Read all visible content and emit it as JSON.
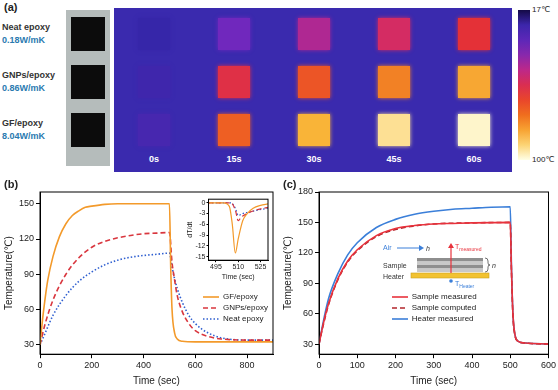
{
  "chart_data": [
    {
      "panel": "(a)",
      "type": "heatmap",
      "x": [
        "0s",
        "15s",
        "30s",
        "45s",
        "60s"
      ],
      "rows": [
        {
          "name": "Neat epoxy",
          "label": "0.18W/mK",
          "values": [
            24,
            38,
            48,
            56,
            62
          ]
        },
        {
          "name": "GNPs/epoxy",
          "label": "0.86W/mK",
          "values": [
            26,
            60,
            70,
            78,
            84
          ]
        },
        {
          "name": "GF/epoxy",
          "label": "8.04W/mK",
          "values": [
            28,
            72,
            86,
            94,
            98
          ]
        }
      ],
      "colorbar": {
        "range": [
          17,
          100
        ],
        "ticks": [
          {
            "value": 17,
            "label": "17℃"
          },
          {
            "value": 100,
            "label": "100℃"
          }
        ]
      }
    },
    {
      "panel": "(b)",
      "type": "line",
      "x_label": "Time (sec)",
      "y_label": "Temperature(℃)",
      "xlim": [
        0,
        900
      ],
      "xticks": [
        0,
        200,
        400,
        600,
        800
      ],
      "ylim": [
        22,
        160
      ],
      "yticks": [
        30,
        60,
        90,
        120,
        150
      ],
      "grid": false,
      "legend": "lower right",
      "series": [
        {
          "name": "GF/epoxy",
          "color": "#f39a2b",
          "line_style": "solid",
          "x": [
            0,
            10,
            20,
            30,
            50,
            75,
            100,
            125,
            150,
            175,
            200,
            250,
            300,
            400,
            495,
            500,
            505,
            510,
            520,
            530,
            550,
            600,
            700,
            800,
            900
          ],
          "values": [
            30,
            52,
            70,
            85,
            105,
            122,
            133,
            140,
            144,
            147,
            148,
            149.5,
            150,
            150,
            150,
            150,
            95,
            60,
            40,
            35,
            33,
            32.5,
            32.5,
            32.5,
            32.5
          ]
        },
        {
          "name": "GNPs/epoxy",
          "color": "#d9363e",
          "line_style": "dashed",
          "x": [
            0,
            20,
            50,
            100,
            150,
            200,
            250,
            300,
            350,
            400,
            450,
            500,
            510,
            520,
            530,
            550,
            575,
            600,
            650,
            700,
            800,
            900
          ],
          "values": [
            30,
            48,
            68,
            90,
            104,
            113,
            118,
            121,
            123,
            124.5,
            125,
            125.5,
            100,
            85,
            72,
            58,
            48,
            42,
            37,
            35,
            34,
            34
          ]
        },
        {
          "name": "Neat epoxy",
          "color": "#2f5fd0",
          "line_style": "dotted",
          "x": [
            0,
            20,
            50,
            100,
            150,
            200,
            250,
            300,
            350,
            400,
            450,
            500,
            510,
            520,
            530,
            550,
            575,
            600,
            650,
            700,
            800,
            900
          ],
          "values": [
            30,
            40,
            55,
            72,
            84,
            92,
            98,
            102,
            104.5,
            106,
            107,
            108,
            96,
            86,
            78,
            66,
            55,
            48,
            40,
            36,
            34,
            34
          ]
        }
      ],
      "inset": {
        "type": "line",
        "x_label": "Time (sec)",
        "y_label": "dT/dt",
        "xlim": [
          490,
          530
        ],
        "xticks": [
          495,
          510,
          525
        ],
        "ylim": [
          -16,
          1
        ],
        "yticks": [
          -15,
          -12,
          -9,
          -6,
          -3,
          0
        ],
        "grid": false,
        "series": [
          {
            "color": "#f39a2b",
            "line_style": "solid",
            "x": [
              490,
              500,
              504,
              506,
              508,
              510,
              513,
              516,
              520,
              525,
              530
            ],
            "values": [
              0,
              0,
              -1,
              -6,
              -14,
              -10,
              -5,
              -3,
              -1.5,
              -0.7,
              -0.3
            ]
          },
          {
            "color": "#d9363e",
            "line_style": "dashed",
            "x": [
              490,
              505,
              508,
              510,
              512,
              516,
              520,
              525,
              530
            ],
            "values": [
              0,
              0,
              -2,
              -5,
              -4,
              -3,
              -2.3,
              -1.7,
              -1.3
            ]
          },
          {
            "color": "#2f5fd0",
            "line_style": "dotted",
            "x": [
              490,
              505,
              508,
              510,
              513,
              520,
              530
            ],
            "values": [
              0,
              0,
              -1.5,
              -3.5,
              -3,
              -2.3,
              -1.5
            ]
          }
        ]
      }
    },
    {
      "panel": "(c)",
      "type": "line",
      "x_label": "Time (sec)",
      "y_label": "Temperature(℃)",
      "xlim": [
        0,
        600
      ],
      "xticks": [
        0,
        100,
        200,
        300,
        400,
        500,
        600
      ],
      "ylim": [
        20,
        180
      ],
      "yticks": [
        30,
        60,
        90,
        120,
        150,
        180
      ],
      "grid": false,
      "legend": "lower center",
      "series": [
        {
          "name": "Sample measured",
          "color": "#e8323c",
          "line_style": "solid",
          "x": [
            0,
            10,
            25,
            50,
            75,
            100,
            150,
            200,
            250,
            300,
            350,
            400,
            500,
            503,
            507,
            512,
            520,
            540,
            600
          ],
          "values": [
            30,
            48,
            70,
            95,
            112,
            123,
            137,
            144,
            147,
            148.5,
            149,
            149.5,
            150,
            105,
            60,
            40,
            33,
            31,
            30
          ]
        },
        {
          "name": "Sample computed",
          "color": "#b3262d",
          "line_style": "dashed",
          "x": [
            0,
            10,
            25,
            50,
            75,
            100,
            150,
            200,
            250,
            300,
            400,
            500,
            503,
            507,
            512,
            520,
            540,
            600
          ],
          "values": [
            30,
            47,
            69,
            94,
            111,
            122,
            136,
            143,
            146.5,
            148.5,
            149.5,
            150,
            104,
            58,
            39,
            33,
            31,
            30
          ]
        },
        {
          "name": "Heater measured",
          "color": "#3b7fd9",
          "line_style": "solid",
          "x": [
            0,
            10,
            25,
            50,
            75,
            100,
            150,
            200,
            250,
            300,
            350,
            400,
            450,
            500,
            503,
            507,
            512,
            520,
            540,
            600
          ],
          "values": [
            30,
            50,
            75,
            100,
            118,
            130,
            145,
            153,
            158,
            161,
            163,
            164,
            165,
            165.5,
            110,
            60,
            40,
            33,
            31,
            30
          ]
        }
      ],
      "diagram": {
        "air": "Air",
        "flow": "h",
        "sample": "Sample",
        "heater": "Heater",
        "layers": "n",
        "t_measured": {
          "text": "T",
          "subscript": "measured"
        },
        "t_heater": {
          "text": "T",
          "subscript": "Heater"
        }
      }
    }
  ]
}
